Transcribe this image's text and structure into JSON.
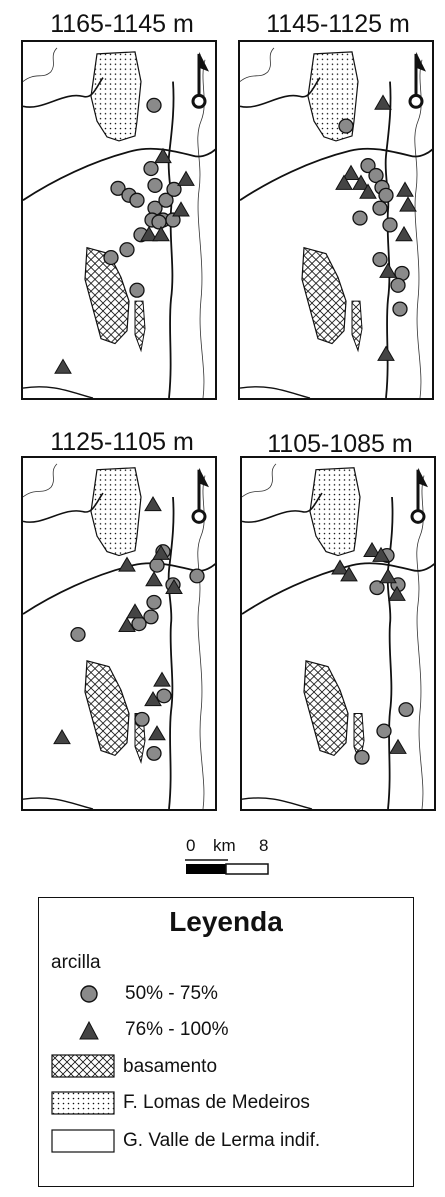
{
  "panels": [
    {
      "title": "1165-1145 m",
      "circles": [
        [
          131,
          64
        ],
        [
          95,
          148
        ],
        [
          106,
          155
        ],
        [
          114,
          160
        ],
        [
          132,
          168
        ],
        [
          143,
          160
        ],
        [
          151,
          149
        ],
        [
          129,
          180
        ],
        [
          140,
          180
        ],
        [
          150,
          180
        ],
        [
          118,
          195
        ],
        [
          104,
          210
        ],
        [
          88,
          218
        ],
        [
          114,
          251
        ],
        [
          128,
          128
        ],
        [
          132,
          145
        ],
        [
          136,
          182
        ]
      ],
      "triangles": [
        [
          140,
          116
        ],
        [
          163,
          139
        ],
        [
          158,
          170
        ],
        [
          126,
          195
        ],
        [
          138,
          195
        ],
        [
          40,
          329
        ]
      ]
    },
    {
      "title": "1145-1125 m",
      "circles": [
        [
          106,
          85
        ],
        [
          128,
          125
        ],
        [
          136,
          135
        ],
        [
          142,
          147
        ],
        [
          140,
          168
        ],
        [
          146,
          155
        ],
        [
          150,
          185
        ],
        [
          140,
          220
        ],
        [
          162,
          234
        ],
        [
          158,
          246
        ],
        [
          160,
          270
        ],
        [
          120,
          178
        ]
      ],
      "triangles": [
        [
          143,
          62
        ],
        [
          111,
          133
        ],
        [
          104,
          143
        ],
        [
          121,
          143
        ],
        [
          128,
          152
        ],
        [
          165,
          150
        ],
        [
          168,
          165
        ],
        [
          164,
          195
        ],
        [
          148,
          232
        ],
        [
          146,
          316
        ]
      ]
    },
    {
      "title": "1125-1105 m",
      "circles": [
        [
          140,
          96
        ],
        [
          134,
          110
        ],
        [
          174,
          121
        ],
        [
          150,
          130
        ],
        [
          131,
          148
        ],
        [
          128,
          163
        ],
        [
          116,
          170
        ],
        [
          55,
          181
        ],
        [
          141,
          244
        ],
        [
          119,
          268
        ],
        [
          131,
          303
        ]
      ],
      "triangles": [
        [
          130,
          48
        ],
        [
          138,
          98
        ],
        [
          104,
          110
        ],
        [
          131,
          125
        ],
        [
          151,
          133
        ],
        [
          112,
          158
        ],
        [
          104,
          172
        ],
        [
          139,
          228
        ],
        [
          130,
          248
        ],
        [
          134,
          283
        ],
        [
          39,
          287
        ]
      ]
    },
    {
      "title": "1105-1085 m",
      "circles": [
        [
          145,
          100
        ],
        [
          156,
          130
        ],
        [
          135,
          133
        ],
        [
          164,
          258
        ],
        [
          142,
          280
        ],
        [
          120,
          307
        ]
      ],
      "triangles": [
        [
          98,
          113
        ],
        [
          107,
          120
        ],
        [
          130,
          95
        ],
        [
          139,
          100
        ],
        [
          146,
          122
        ],
        [
          155,
          140
        ],
        [
          156,
          297
        ]
      ]
    }
  ],
  "scale": {
    "zero": "0",
    "unit": "km",
    "max": "8"
  },
  "legend": {
    "title": "Leyenda",
    "group": "arcilla",
    "items": [
      "50% - 75%",
      "76% - 100%",
      "basamento",
      "F. Lomas de Medeiros",
      "G. Valle de Lerma indif."
    ]
  },
  "colors": {
    "circle_fill": "#8a8a8a",
    "triangle_fill": "#444444",
    "outline": "#111111"
  }
}
